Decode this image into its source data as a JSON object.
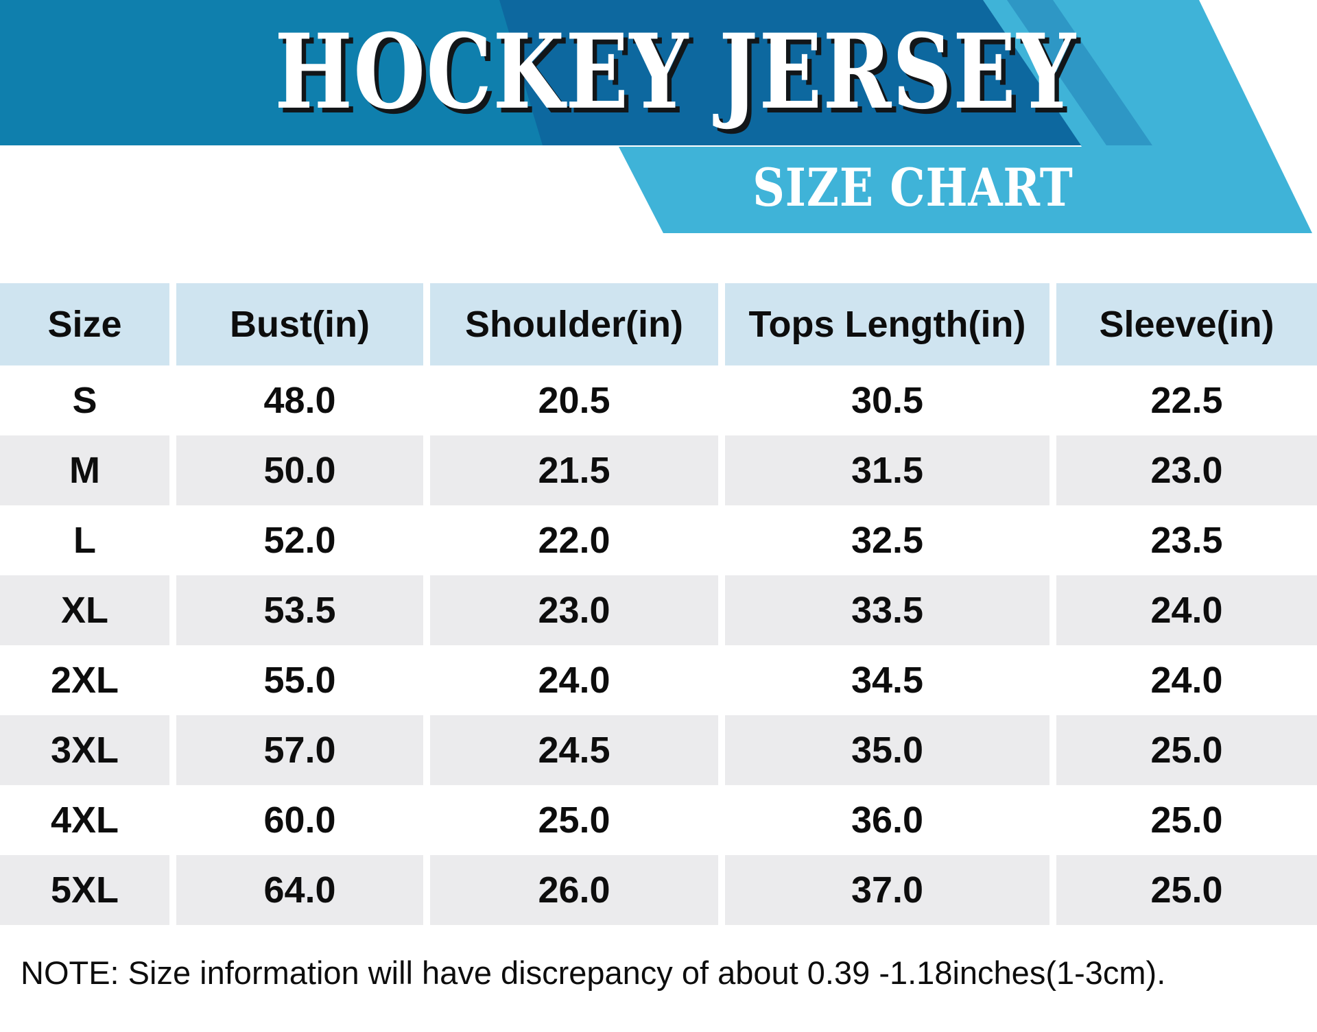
{
  "colors": {
    "main-blue": "#0f7fad",
    "dark-blue": "#0d689f",
    "cyan": "#3fb3d8",
    "stripe-blue": "#2e97c5",
    "header-bg": "#cfe4f0",
    "row-alt": "#ebebed",
    "text": "#0d0d0d",
    "shadow": "#121619"
  },
  "banner": {
    "title": "HOCKEY JERSEY",
    "subtitle": "SIZE CHART"
  },
  "table": {
    "headers": [
      "Size",
      "Bust(in)",
      "Shoulder(in)",
      "Tops Length(in)",
      "Sleeve(in)"
    ],
    "rows": [
      {
        "size": "S",
        "bust": "48.0",
        "shoulder": "20.5",
        "tops_length": "30.5",
        "sleeve": "22.5"
      },
      {
        "size": "M",
        "bust": "50.0",
        "shoulder": "21.5",
        "tops_length": "31.5",
        "sleeve": "23.0"
      },
      {
        "size": "L",
        "bust": "52.0",
        "shoulder": "22.0",
        "tops_length": "32.5",
        "sleeve": "23.5"
      },
      {
        "size": "XL",
        "bust": "53.5",
        "shoulder": "23.0",
        "tops_length": "33.5",
        "sleeve": "24.0"
      },
      {
        "size": "2XL",
        "bust": "55.0",
        "shoulder": "24.0",
        "tops_length": "34.5",
        "sleeve": "24.0"
      },
      {
        "size": "3XL",
        "bust": "57.0",
        "shoulder": "24.5",
        "tops_length": "35.0",
        "sleeve": "25.0"
      },
      {
        "size": "4XL",
        "bust": "60.0",
        "shoulder": "25.0",
        "tops_length": "36.0",
        "sleeve": "25.0"
      },
      {
        "size": "5XL",
        "bust": "64.0",
        "shoulder": "26.0",
        "tops_length": "37.0",
        "sleeve": "25.0"
      }
    ]
  },
  "note": "NOTE: Size information will have discrepancy of about 0.39 -1.18inches(1-3cm).",
  "chart_data": {
    "type": "table",
    "title": "HOCKEY JERSEY",
    "subtitle": "SIZE CHART",
    "columns": [
      "Size",
      "Bust(in)",
      "Shoulder(in)",
      "Tops Length(in)",
      "Sleeve(in)"
    ],
    "rows": [
      [
        "S",
        48.0,
        20.5,
        30.5,
        22.5
      ],
      [
        "M",
        50.0,
        21.5,
        31.5,
        23.0
      ],
      [
        "L",
        52.0,
        22.0,
        32.5,
        23.5
      ],
      [
        "XL",
        53.5,
        23.0,
        33.5,
        24.0
      ],
      [
        "2XL",
        55.0,
        24.0,
        34.5,
        24.0
      ],
      [
        "3XL",
        57.0,
        24.5,
        35.0,
        25.0
      ],
      [
        "4XL",
        60.0,
        25.0,
        36.0,
        25.0
      ],
      [
        "5XL",
        64.0,
        26.0,
        37.0,
        25.0
      ]
    ],
    "footnote": "NOTE: Size information will have discrepancy of about 0.39 -1.18inches(1-3cm)."
  }
}
